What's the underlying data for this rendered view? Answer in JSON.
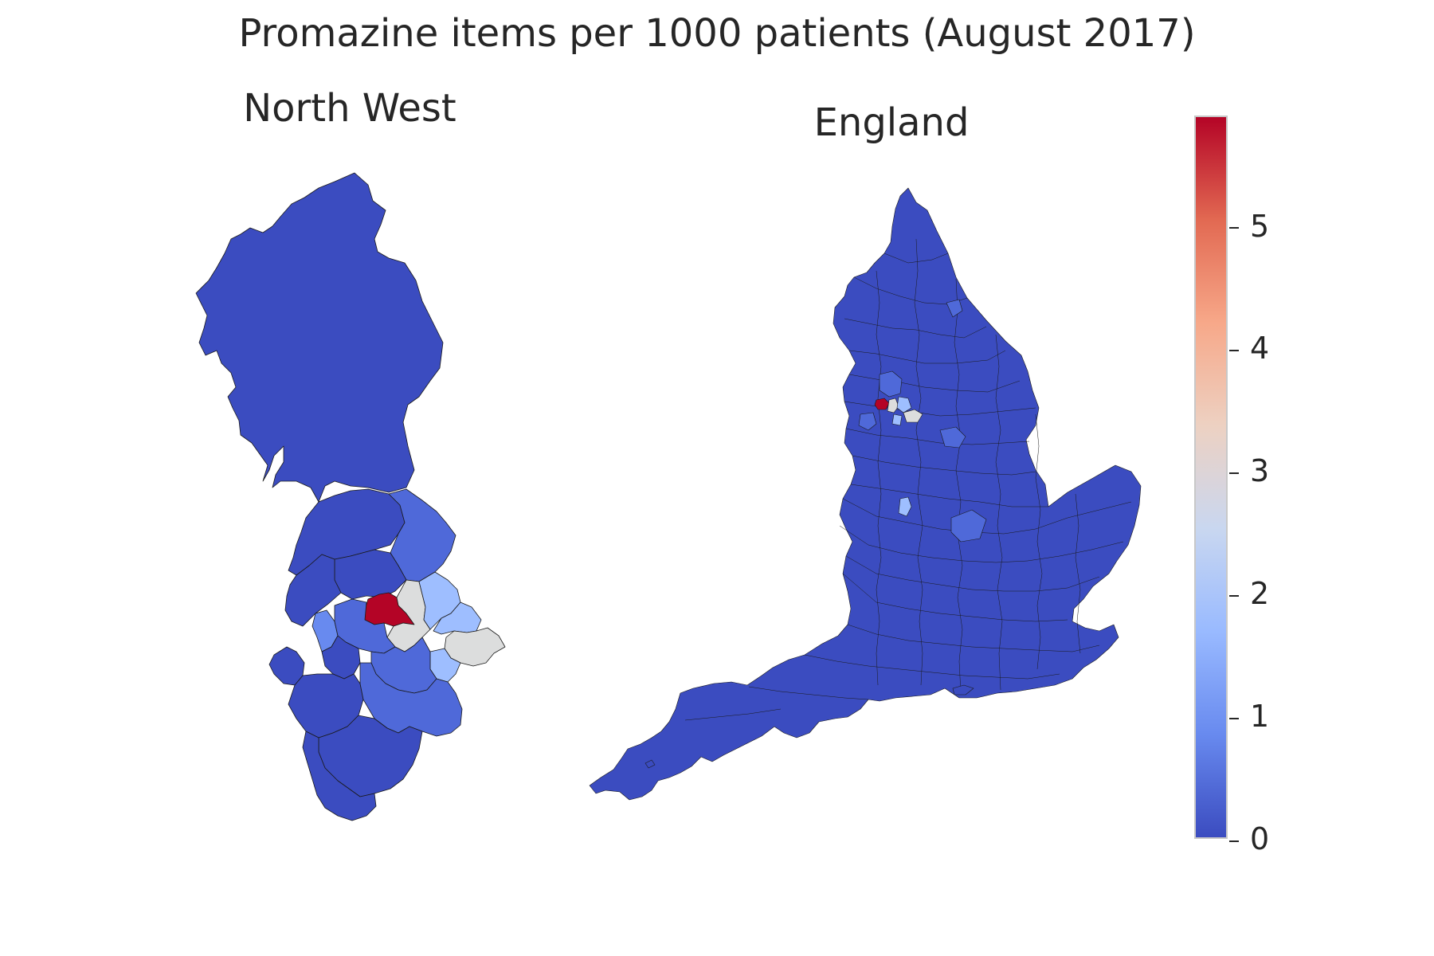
{
  "title": "Promazine items per 1000 patients (August 2017)",
  "panels": {
    "left": {
      "title": "North West"
    },
    "right": {
      "title": "England"
    }
  },
  "colorbar": {
    "min": 0,
    "max": 5.9,
    "colormap": "coolwarm",
    "ticks": [
      "0",
      "1",
      "2",
      "3",
      "4",
      "5"
    ],
    "colors": [
      "#3b4cc0",
      "#688aef",
      "#99baff",
      "#c9d7f0",
      "#edd1c2",
      "#f7a889",
      "#e26952",
      "#b40426"
    ]
  },
  "regions": {
    "low": "#3b4cc0",
    "mid_low": "#4f69d9",
    "light": "#9ebeff",
    "pale": "#dcdddd",
    "high": "#b40426"
  }
}
